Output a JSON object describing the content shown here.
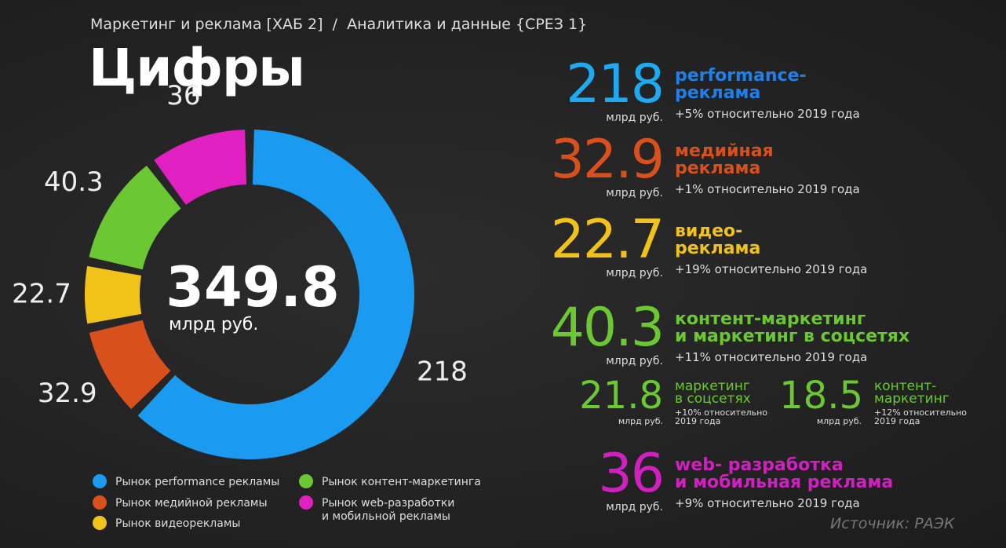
{
  "breadcrumb": "Маркетинг и реклама [ХАБ 2]  /  Аналитика и данные {СРЕЗ 1}",
  "title": "Цифры",
  "chart_data": {
    "type": "donut",
    "categories": [
      "Рынок performance рекламы",
      "Рынок медийной рекламы",
      "Рынок видеорекламы",
      "Рынок контент-маркетинга",
      "Рынок web-разработки\nи мобильной рекламы"
    ],
    "values": [
      218,
      32.9,
      22.7,
      40.3,
      36
    ],
    "colors": [
      "#1a9af0",
      "#d8501c",
      "#f0c21a",
      "#6cc832",
      "#e020c0"
    ],
    "total": 349.8,
    "total_unit": "млрд руб."
  },
  "details": [
    {
      "value": 218,
      "title": "performance-\nреклама",
      "unit": "млрд руб.",
      "note": "+5% относительно 2019 года",
      "color": "#1e80ea"
    },
    {
      "value": 32.9,
      "title": "медийная\nреклама",
      "unit": "млрд руб.",
      "note": "+1% относительно 2019 года",
      "color": "#d8501c"
    },
    {
      "value": 22.7,
      "title": "видео-\nреклама",
      "unit": "млрд руб.",
      "note": "+19% относительно 2019 года",
      "color": "#f0c21a"
    },
    {
      "value": 40.3,
      "title": "контент-маркетинг\nи маркетинг в соцсетях",
      "unit": "млрд руб.",
      "note": "+11% относительно 2019 года",
      "color": "#6cc832",
      "sub": [
        {
          "value": 21.8,
          "title": "маркетинг\nв соцсетях",
          "unit": "млрд руб.",
          "note": "+10% относительно\n2019 года"
        },
        {
          "value": 18.5,
          "title": "контент-\nмаркетинг",
          "unit": "млрд руб.",
          "note": "+12% относительно\n2019 года"
        }
      ]
    },
    {
      "value": 36,
      "title": "web- разработка\nи мобильная реклама",
      "unit": "млрд руб.",
      "note": "+9% относительно 2019 года",
      "color": "#d020c0"
    }
  ],
  "source": "Источник: РАЭК"
}
